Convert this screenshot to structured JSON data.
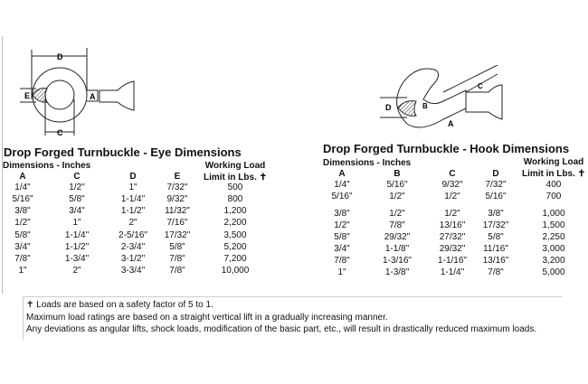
{
  "eye": {
    "title": "Drop Forged Turnbuckle - Eye Dimensions",
    "subtitle": "Dimensions - Inches",
    "wll_line1": "Working Load",
    "wll_line2": "Limit in Lbs. ✝",
    "columns": [
      "A",
      "C",
      "D",
      "E"
    ],
    "rows": [
      [
        "1/4\"",
        "1/2\"",
        "1\"",
        "7/32\"",
        "500"
      ],
      [
        "5/16\"",
        "5/8\"",
        "1-1/4\"",
        "9/32\"",
        "800"
      ],
      [
        "3/8\"",
        "3/4\"",
        "1-1/2\"",
        "11/32\"",
        "1,200"
      ],
      [
        "1/2\"",
        "1\"",
        "2\"",
        "7/16\"",
        "2,200"
      ],
      [
        "5/8\"",
        "1-1/4\"",
        "2-5/16\"",
        "17/32\"",
        "3,500"
      ],
      [
        "3/4\"",
        "1-1/2\"",
        "2-3/4\"",
        "5/8\"",
        "5,200"
      ],
      [
        "7/8\"",
        "1-3/4\"",
        "3-1/2\"",
        "7/8\"",
        "7,200"
      ],
      [
        "1\"",
        "2\"",
        "3-3/4\"",
        "7/8\"",
        "10,000"
      ]
    ],
    "diagram_labels": [
      "D",
      "E",
      "A",
      "C"
    ]
  },
  "hook": {
    "title": "Drop Forged Turnbuckle - Hook Dimensions",
    "subtitle": "Dimensions - Inches",
    "wll_line1": "Working Load",
    "wll_line2": "Limit in Lbs. ✝",
    "columns": [
      "A",
      "B",
      "C",
      "D"
    ],
    "rows": [
      [
        "1/4\"",
        "5/16\"",
        "9/32\"",
        "7/32\"",
        "400"
      ],
      [
        "5/16\"",
        "1/2\"",
        "1/2\"",
        "5/16\"",
        "700"
      ],
      [
        "3/8\"",
        "1/2\"",
        "1/2\"",
        "3/8\"",
        "1,000"
      ],
      [
        "1/2\"",
        "7/8\"",
        "13/16\"",
        "17/32\"",
        "1,500"
      ],
      [
        "5/8\"",
        "29/32\"",
        "27/32\"",
        "5/8\"",
        "2,250"
      ],
      [
        "3/4\"",
        "1-1/8\"",
        "29/32\"",
        "11/16\"",
        "3,000"
      ],
      [
        "7/8\"",
        "1-3/16\"",
        "1-1/16\"",
        "13/16\"",
        "3,200"
      ],
      [
        "1\"",
        "1-3/8\"",
        "1-1/4\"",
        "7/8\"",
        "5,000"
      ]
    ],
    "diagram_labels": [
      "D",
      "B",
      "A",
      "C"
    ]
  },
  "notes": [
    "✝ Loads are based on a safety factor of 5 to 1.",
    "Maximum load ratings are based on a straight vertical lift in a gradually increasing manner.",
    "Any deviations as angular lifts, shock loads, modification of the basic part, etc., will result in drastically reduced maximum loads."
  ]
}
